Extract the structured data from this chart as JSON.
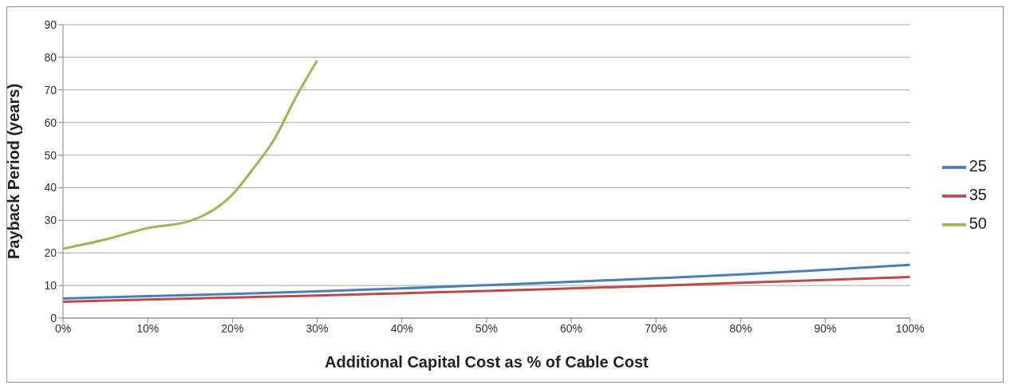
{
  "chart_data": {
    "type": "line",
    "xlabel": "Additional Capital Cost as % of Cable Cost",
    "ylabel": "Payback Period (years)",
    "x": [
      0,
      10,
      20,
      30,
      40,
      50,
      60,
      70,
      80,
      90,
      100
    ],
    "series": [
      {
        "name": "25",
        "color": "#4a7ebb",
        "values": [
          6.0,
          6.7,
          7.4,
          8.2,
          9.1,
          10.1,
          11.1,
          12.2,
          13.4,
          14.8,
          16.3
        ]
      },
      {
        "name": "35",
        "color": "#be4b48",
        "values": [
          5.0,
          5.7,
          6.3,
          6.9,
          7.6,
          8.3,
          9.1,
          9.9,
          10.8,
          11.7,
          12.6
        ]
      },
      {
        "name": "50",
        "color": "#98b954",
        "x": [
          0,
          5,
          10,
          15,
          20,
          22.5,
          25,
          27.5,
          30
        ],
        "values": [
          21.3,
          24.1,
          27.6,
          29.8,
          37.9,
          46,
          55.1,
          67.8,
          79
        ]
      }
    ],
    "xlim": [
      0,
      100
    ],
    "xticks": [
      {
        "value": 0,
        "label": "0%"
      },
      {
        "value": 10,
        "label": "10%"
      },
      {
        "value": 20,
        "label": "20%"
      },
      {
        "value": 30,
        "label": "30%"
      },
      {
        "value": 40,
        "label": "40%"
      },
      {
        "value": 50,
        "label": "50%"
      },
      {
        "value": 60,
        "label": "60%"
      },
      {
        "value": 70,
        "label": "70%"
      },
      {
        "value": 80,
        "label": "80%"
      },
      {
        "value": 90,
        "label": "90%"
      },
      {
        "value": 100,
        "label": "100%"
      }
    ],
    "ylim": [
      0,
      90
    ],
    "yticks": [
      0,
      10,
      20,
      30,
      40,
      50,
      60,
      70,
      80,
      90
    ],
    "grid": "y",
    "legend": "right",
    "marker": "none",
    "line_style": "solid"
  }
}
